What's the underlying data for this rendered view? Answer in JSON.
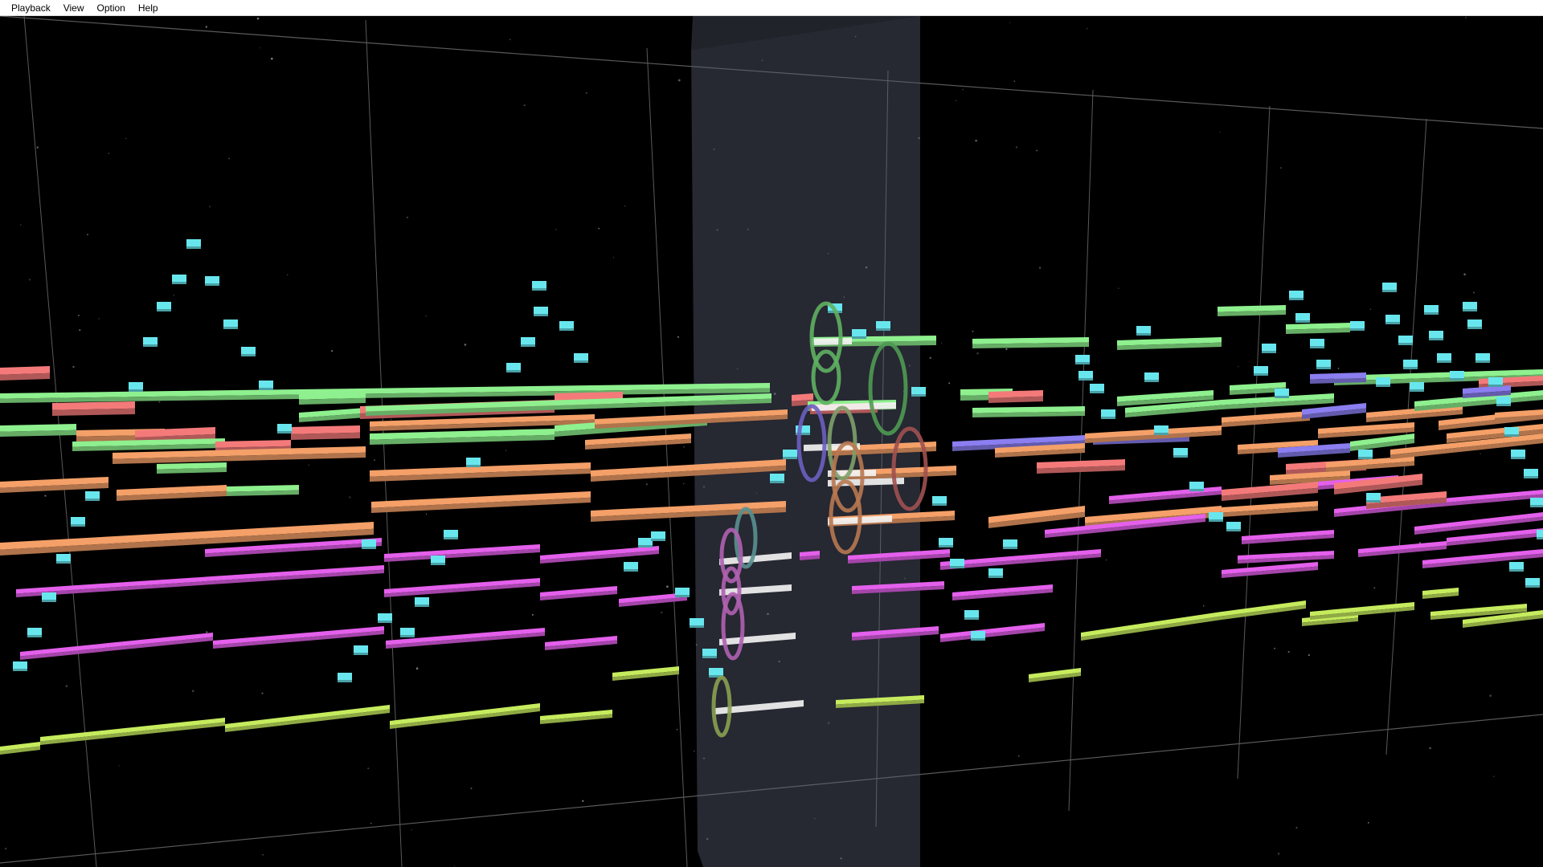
{
  "menubar": {
    "items": [
      {
        "label": "Playback"
      },
      {
        "label": "View"
      },
      {
        "label": "Option"
      },
      {
        "label": "Help"
      }
    ]
  },
  "scene": {
    "background": "#000000",
    "playhead_color": "#5a6078",
    "grid_color": "#5a5a5a",
    "palette": {
      "green": "#8ef08e",
      "red": "#f47a7a",
      "orange": "#f4a068",
      "magenta": "#e460ec",
      "lime": "#c6ec5e",
      "cyan": "#68e6ee",
      "purple": "#8a7ef0"
    }
  }
}
